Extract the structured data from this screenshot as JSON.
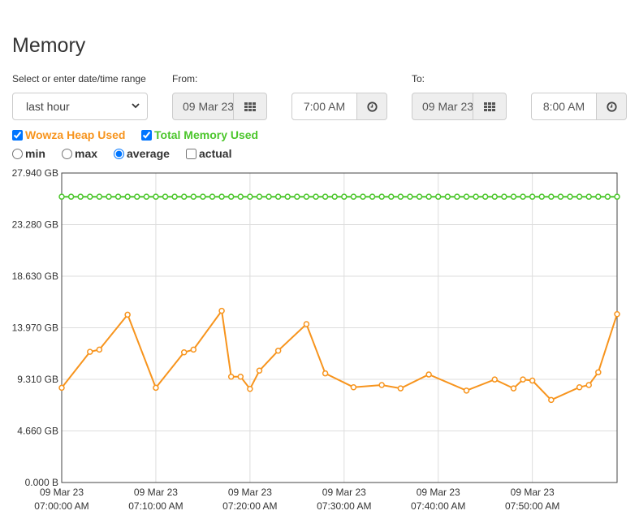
{
  "page": {
    "title": "Memory"
  },
  "range": {
    "label": "Select or enter date/time range",
    "selected": "last hour"
  },
  "from": {
    "label": "From:",
    "date": "09 Mar 23",
    "time": "7:00 AM"
  },
  "to": {
    "label": "To:",
    "date": "09 Mar 23",
    "time": "8:00 AM"
  },
  "toggles": {
    "heap": {
      "label": "Wowza Heap Used",
      "checked": true,
      "color": "#f7941d"
    },
    "total": {
      "label": "Total Memory Used",
      "checked": true,
      "color": "#4cc62c"
    }
  },
  "modes": [
    {
      "label": "min",
      "type": "radio",
      "checked": false
    },
    {
      "label": "max",
      "type": "radio",
      "checked": false
    },
    {
      "label": "average",
      "type": "radio",
      "checked": true
    },
    {
      "label": "actual",
      "type": "checkbox",
      "checked": false
    }
  ],
  "icons": {
    "calendar": "calendar-grid-icon",
    "clock": "clock-icon",
    "dropdown": "chevron-down-icon"
  },
  "chart_data": {
    "type": "line",
    "y_ticks": [
      {
        "value": 0,
        "label": "0.000 B"
      },
      {
        "value": 4.66,
        "label": "4.660 GB"
      },
      {
        "value": 9.31,
        "label": "9.310 GB"
      },
      {
        "value": 13.97,
        "label": "13.970 GB"
      },
      {
        "value": 18.63,
        "label": "18.630 GB"
      },
      {
        "value": 23.28,
        "label": "23.280 GB"
      },
      {
        "value": 27.94,
        "label": "27.940 GB"
      }
    ],
    "ylim": [
      0,
      27.94
    ],
    "xlim": [
      0,
      59
    ],
    "x_ticks": [
      {
        "value": 0,
        "date": "09 Mar 23",
        "time": "07:00:00 AM"
      },
      {
        "value": 10,
        "date": "09 Mar 23",
        "time": "07:10:00 AM"
      },
      {
        "value": 20,
        "date": "09 Mar 23",
        "time": "07:20:00 AM"
      },
      {
        "value": 30,
        "date": "09 Mar 23",
        "time": "07:30:00 AM"
      },
      {
        "value": 40,
        "date": "09 Mar 23",
        "time": "07:40:00 AM"
      },
      {
        "value": 50,
        "date": "09 Mar 23",
        "time": "07:50:00 AM"
      }
    ],
    "grid": true,
    "series": [
      {
        "name": "Total Memory Used",
        "color": "#4cc62c",
        "x": [
          0,
          1,
          2,
          3,
          4,
          5,
          6,
          7,
          8,
          9,
          10,
          11,
          12,
          13,
          14,
          15,
          16,
          17,
          18,
          19,
          20,
          21,
          22,
          23,
          24,
          25,
          26,
          27,
          28,
          29,
          30,
          31,
          32,
          33,
          34,
          35,
          36,
          37,
          38,
          39,
          40,
          41,
          42,
          43,
          44,
          45,
          46,
          47,
          48,
          49,
          50,
          51,
          52,
          53,
          54,
          55,
          56,
          57,
          58,
          59
        ],
        "y": [
          25.8,
          25.8,
          25.8,
          25.8,
          25.8,
          25.8,
          25.8,
          25.8,
          25.8,
          25.8,
          25.8,
          25.8,
          25.8,
          25.8,
          25.8,
          25.8,
          25.8,
          25.8,
          25.8,
          25.8,
          25.8,
          25.8,
          25.8,
          25.8,
          25.8,
          25.8,
          25.8,
          25.8,
          25.8,
          25.8,
          25.8,
          25.8,
          25.8,
          25.8,
          25.8,
          25.8,
          25.8,
          25.8,
          25.8,
          25.8,
          25.8,
          25.8,
          25.8,
          25.8,
          25.8,
          25.8,
          25.8,
          25.8,
          25.8,
          25.8,
          25.8,
          25.8,
          25.8,
          25.8,
          25.8,
          25.8,
          25.8,
          25.8,
          25.8,
          25.8
        ]
      },
      {
        "name": "Wowza Heap Used",
        "color": "#f7941d",
        "x": [
          0,
          3,
          4,
          7,
          10,
          13,
          14,
          17,
          18,
          19,
          20,
          21,
          23,
          26,
          28,
          31,
          34,
          36,
          39,
          43,
          46,
          48,
          49,
          50,
          52,
          55,
          56,
          57,
          59
        ],
        "y": [
          8.55,
          11.8,
          12.0,
          15.15,
          8.55,
          11.75,
          12.0,
          15.5,
          9.55,
          9.55,
          8.45,
          10.1,
          11.9,
          14.3,
          9.85,
          8.6,
          8.8,
          8.5,
          9.75,
          8.3,
          9.3,
          8.5,
          9.3,
          9.2,
          7.45,
          8.6,
          8.8,
          9.95,
          15.2
        ]
      }
    ]
  }
}
